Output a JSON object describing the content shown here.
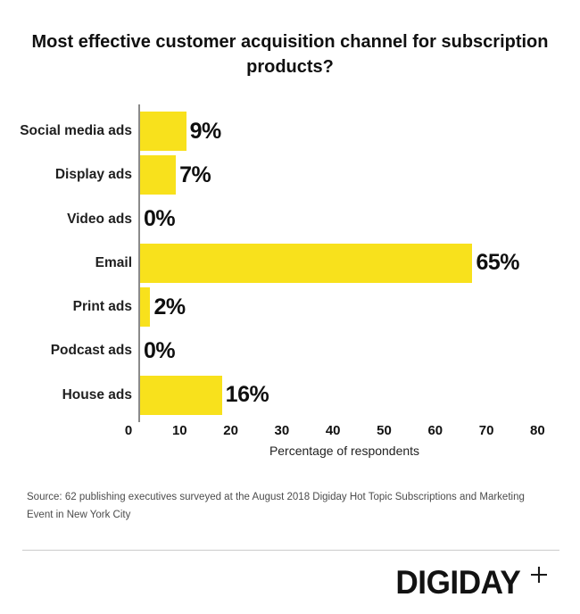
{
  "title": {
    "lines": [
      "Most effective customer acquisition channel for subscription",
      "products?"
    ]
  },
  "chart_data": {
    "type": "bar",
    "orientation": "horizontal",
    "title": "Most effective customer acquisition channel for subscription products?",
    "categories": [
      "Social media ads",
      "Display ads",
      "Video ads",
      "Email",
      "Print ads",
      "Podcast ads",
      "House ads"
    ],
    "values": [
      9,
      7,
      0,
      65,
      2,
      0,
      16
    ],
    "value_labels": [
      "9%",
      "7%",
      "0%",
      "65%",
      "2%",
      "0%",
      "16%"
    ],
    "xlabel": "Percentage of respondents",
    "xticks": [
      0,
      10,
      20,
      30,
      40,
      50,
      60,
      70,
      80
    ],
    "xlim": [
      0,
      80
    ],
    "grid": false,
    "legend": false,
    "bar_color": "#F8E11C",
    "axis_color": "#8A8A8A",
    "text_color": "#0F0F0F"
  },
  "source": {
    "text": "Source: 62 publishing executives surveyed at the August 2018 Digiday Hot Topic Subscriptions and Marketing Event in New York City"
  },
  "footer": {
    "logo_text": "DIGIDAY",
    "plus_icon": "plus-icon",
    "divider_color": "#CBCBCB"
  }
}
